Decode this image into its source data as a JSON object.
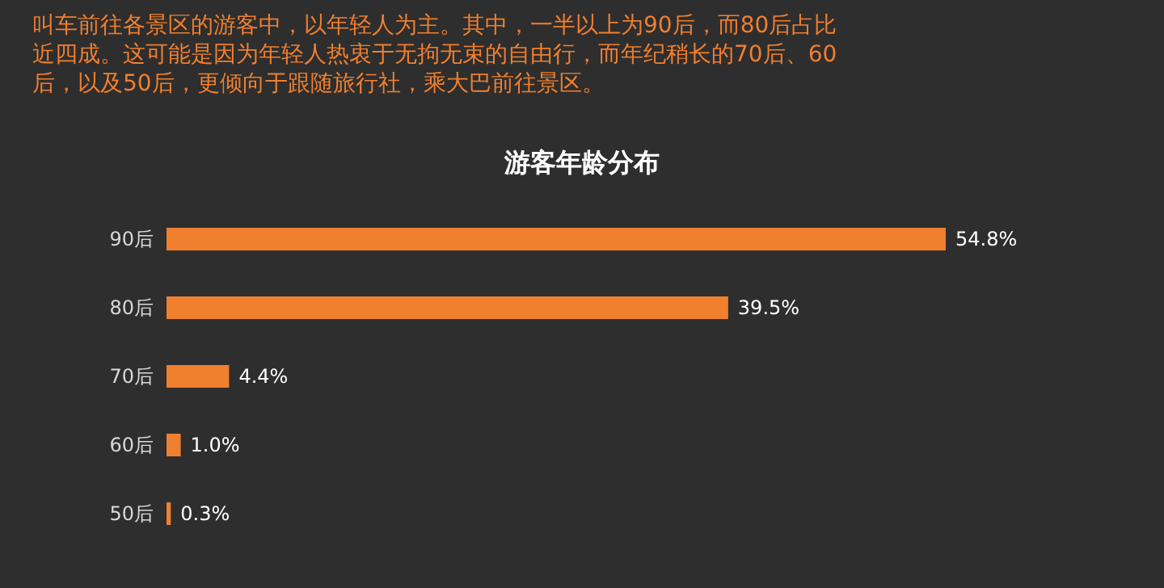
{
  "chart_data": {
    "type": "bar",
    "orientation": "horizontal",
    "title": "游客年龄分布",
    "subtitle": "叫车前往各景区的游客中，以年轻人为主。其中，一半以上为90后，而80后占比近四成。这可能是因为年轻人热衷于无拘无束的自由行，而年纪稍长的70后、60后，以及50后，更倾向于跟随旅行社，乘大巴前往景区。",
    "categories": [
      "90后",
      "80后",
      "70后",
      "60后",
      "50后"
    ],
    "values": [
      54.8,
      39.5,
      4.4,
      1.0,
      0.3
    ],
    "value_labels": [
      "54.8%",
      "39.5%",
      "4.4%",
      "1.0%",
      "0.3%"
    ],
    "color": "#f07f2e"
  }
}
